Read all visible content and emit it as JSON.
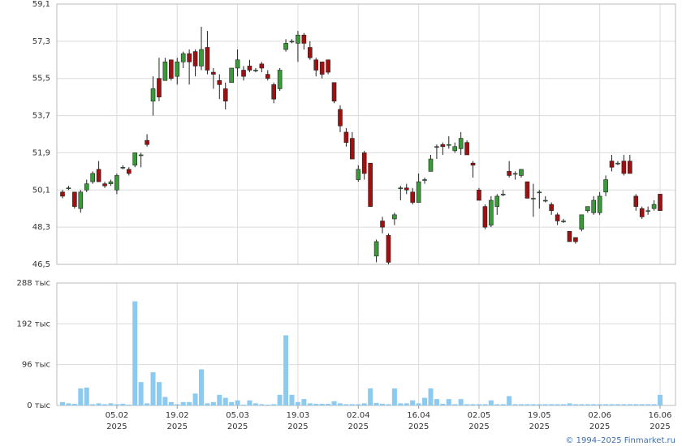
{
  "chart_data": [
    {
      "type": "candlestick",
      "up_color": "#3a9a3a",
      "down_color": "#a01010",
      "ylim": [
        46.5,
        59.1
      ],
      "yticks": [
        {
          "value": 46.5,
          "label": "46,5"
        },
        {
          "value": 48.3,
          "label": "48,3"
        },
        {
          "value": 50.1,
          "label": "50,1"
        },
        {
          "value": 51.9,
          "label": "51,9"
        },
        {
          "value": 53.7,
          "label": "53,7"
        },
        {
          "value": 55.5,
          "label": "55,5"
        },
        {
          "value": 57.3,
          "label": "57,3"
        },
        {
          "value": 59.1,
          "label": "59,1"
        }
      ],
      "grid": true,
      "open": [
        50.0,
        50.2,
        50.0,
        49.2,
        50.1,
        50.5,
        51.1,
        50.4,
        50.4,
        50.1,
        51.2,
        51.1,
        51.3,
        51.8,
        52.5,
        54.4,
        55.5,
        55.4,
        56.4,
        55.6,
        56.3,
        56.7,
        56.8,
        56.1,
        57.0,
        55.8,
        55.4,
        55.0,
        55.3,
        56.0,
        55.9,
        56.1,
        55.9,
        56.2,
        55.7,
        55.2,
        55.0,
        56.9,
        57.3,
        57.2,
        57.6,
        57.0,
        56.4,
        56.3,
        56.4,
        55.3,
        54.0,
        52.9,
        52.6,
        50.6,
        51.9,
        51.4,
        46.9,
        48.6,
        47.9,
        48.7,
        50.2,
        50.2,
        50.0,
        49.5,
        50.6,
        51.0,
        52.2,
        52.3,
        52.3,
        52.0,
        52.1,
        52.4,
        51.4,
        50.1,
        49.3,
        48.4,
        49.3,
        49.9,
        51.0,
        50.9,
        50.8,
        50.5,
        49.7,
        50.0,
        49.6,
        49.4,
        48.9,
        48.6,
        48.1,
        47.8,
        48.2,
        49.1,
        49.0,
        49.0,
        50.0,
        51.5,
        51.4,
        51.5,
        51.5,
        49.8,
        49.2,
        49.1,
        49.2,
        49.9
      ],
      "high": [
        50.1,
        50.3,
        50.0,
        50.1,
        50.6,
        51.0,
        51.5,
        50.5,
        50.6,
        50.9,
        51.3,
        51.2,
        51.9,
        51.9,
        52.8,
        55.6,
        56.5,
        56.5,
        56.4,
        56.5,
        56.8,
        56.9,
        56.9,
        58.0,
        57.8,
        56.0,
        55.7,
        55.3,
        56.0,
        56.9,
        56.1,
        56.4,
        56.0,
        56.3,
        55.9,
        55.3,
        56.0,
        57.4,
        57.4,
        57.8,
        57.7,
        57.3,
        56.5,
        56.3,
        56.4,
        55.3,
        54.2,
        53.1,
        52.9,
        51.3,
        52.0,
        51.4,
        47.7,
        48.8,
        48.0,
        49.0,
        50.3,
        50.4,
        50.2,
        50.9,
        50.7,
        51.8,
        52.3,
        52.4,
        52.7,
        52.4,
        52.9,
        52.5,
        51.5,
        50.2,
        49.4,
        49.8,
        49.9,
        50.1,
        51.5,
        51.0,
        51.1,
        50.5,
        50.4,
        50.1,
        49.8,
        49.5,
        49.0,
        48.7,
        48.1,
        47.8,
        48.9,
        49.3,
        49.8,
        50.0,
        50.8,
        51.8,
        51.5,
        51.8,
        51.8,
        49.9,
        49.3,
        49.3,
        49.6,
        49.9
      ],
      "low": [
        49.7,
        50.1,
        49.2,
        49.0,
        50.0,
        50.4,
        50.5,
        50.2,
        50.3,
        49.9,
        51.1,
        50.8,
        51.2,
        51.2,
        52.2,
        53.7,
        54.4,
        55.4,
        55.4,
        55.2,
        56.0,
        55.2,
        55.6,
        55.9,
        55.7,
        55.0,
        54.5,
        54.0,
        55.3,
        55.6,
        55.4,
        55.8,
        55.8,
        55.8,
        55.4,
        54.3,
        54.9,
        56.8,
        57.2,
        56.3,
        56.9,
        56.4,
        55.6,
        55.5,
        55.7,
        54.3,
        52.9,
        52.2,
        51.6,
        50.5,
        50.6,
        49.3,
        46.6,
        48.0,
        46.5,
        48.4,
        49.6,
        49.9,
        49.4,
        49.5,
        50.4,
        51.0,
        51.6,
        51.8,
        52.1,
        51.9,
        51.8,
        51.8,
        50.7,
        49.6,
        48.2,
        48.3,
        48.9,
        49.8,
        50.7,
        50.6,
        50.7,
        49.7,
        48.8,
        49.2,
        49.5,
        48.9,
        48.4,
        48.5,
        47.6,
        47.5,
        48.1,
        49.0,
        48.9,
        48.9,
        49.8,
        51.0,
        51.3,
        50.8,
        50.9,
        49.1,
        48.7,
        48.9,
        49.1,
        49.1
      ],
      "close": [
        49.8,
        50.2,
        49.3,
        50.0,
        50.4,
        50.9,
        50.5,
        50.3,
        50.5,
        50.8,
        51.2,
        50.9,
        51.9,
        51.8,
        52.3,
        55.0,
        54.6,
        56.3,
        55.5,
        56.3,
        56.7,
        56.3,
        56.1,
        56.9,
        55.9,
        55.7,
        55.2,
        54.4,
        56.0,
        56.4,
        55.6,
        55.9,
        55.9,
        56.0,
        55.5,
        54.5,
        55.9,
        57.2,
        57.3,
        57.6,
        57.2,
        56.5,
        55.9,
        55.7,
        55.8,
        54.4,
        53.2,
        52.4,
        51.6,
        51.1,
        50.9,
        49.3,
        47.6,
        48.3,
        46.6,
        48.9,
        50.2,
        50.1,
        49.5,
        50.5,
        50.6,
        51.6,
        52.2,
        52.2,
        52.3,
        52.2,
        52.6,
        51.8,
        51.3,
        49.6,
        48.3,
        49.6,
        49.8,
        49.9,
        50.8,
        50.9,
        51.1,
        49.7,
        49.7,
        50.0,
        49.6,
        49.1,
        48.6,
        48.6,
        47.6,
        47.6,
        48.9,
        49.3,
        49.6,
        49.8,
        50.6,
        51.2,
        51.4,
        50.9,
        50.9,
        49.3,
        48.8,
        49.1,
        49.4,
        49.1
      ]
    },
    {
      "type": "bar",
      "color": "#8ccaf0",
      "ylim": [
        0,
        288
      ],
      "yticks": [
        {
          "value": 0,
          "label": "0 тыс"
        },
        {
          "value": 96,
          "label": "96 тыс"
        },
        {
          "value": 192,
          "label": "192 тыс"
        },
        {
          "value": 288,
          "label": "288 тыс"
        }
      ],
      "grid": true,
      "x_sublabel": "2025",
      "categories": [
        null,
        null,
        null,
        null,
        null,
        null,
        null,
        null,
        null,
        "05.02",
        null,
        null,
        null,
        null,
        null,
        null,
        null,
        null,
        null,
        "19.02",
        null,
        null,
        null,
        null,
        null,
        null,
        null,
        null,
        null,
        "05.03",
        null,
        null,
        null,
        null,
        null,
        null,
        null,
        null,
        null,
        "19.03",
        null,
        null,
        null,
        null,
        null,
        null,
        null,
        null,
        null,
        "02.04",
        null,
        null,
        null,
        null,
        null,
        null,
        null,
        null,
        null,
        "16.04",
        null,
        null,
        null,
        null,
        null,
        null,
        null,
        null,
        null,
        "02.05",
        null,
        null,
        null,
        null,
        null,
        null,
        null,
        null,
        null,
        "19.05",
        null,
        null,
        null,
        null,
        null,
        null,
        null,
        null,
        null,
        "02.06",
        null,
        null,
        null,
        null,
        null,
        null,
        null,
        null,
        null,
        "16.06"
      ],
      "values": [
        8,
        5,
        4,
        40,
        42,
        3,
        5,
        3,
        5,
        3,
        4,
        2,
        245,
        55,
        5,
        78,
        55,
        20,
        8,
        3,
        8,
        8,
        28,
        85,
        5,
        8,
        25,
        18,
        8,
        12,
        2,
        12,
        5,
        3,
        2,
        3,
        25,
        165,
        25,
        8,
        15,
        5,
        4,
        4,
        4,
        10,
        5,
        3,
        3,
        3,
        5,
        40,
        6,
        4,
        3,
        40,
        5,
        5,
        12,
        5,
        18,
        40,
        15,
        4,
        15,
        3,
        15,
        3,
        3,
        3,
        3,
        12,
        3,
        3,
        22,
        3,
        3,
        3,
        3,
        3,
        3,
        3,
        3,
        3,
        5,
        3,
        3,
        3,
        3,
        3,
        3,
        3,
        3,
        3,
        3,
        3,
        3,
        3,
        3,
        25
      ]
    }
  ],
  "footer": "© 1994–2025 Finmarket.ru"
}
